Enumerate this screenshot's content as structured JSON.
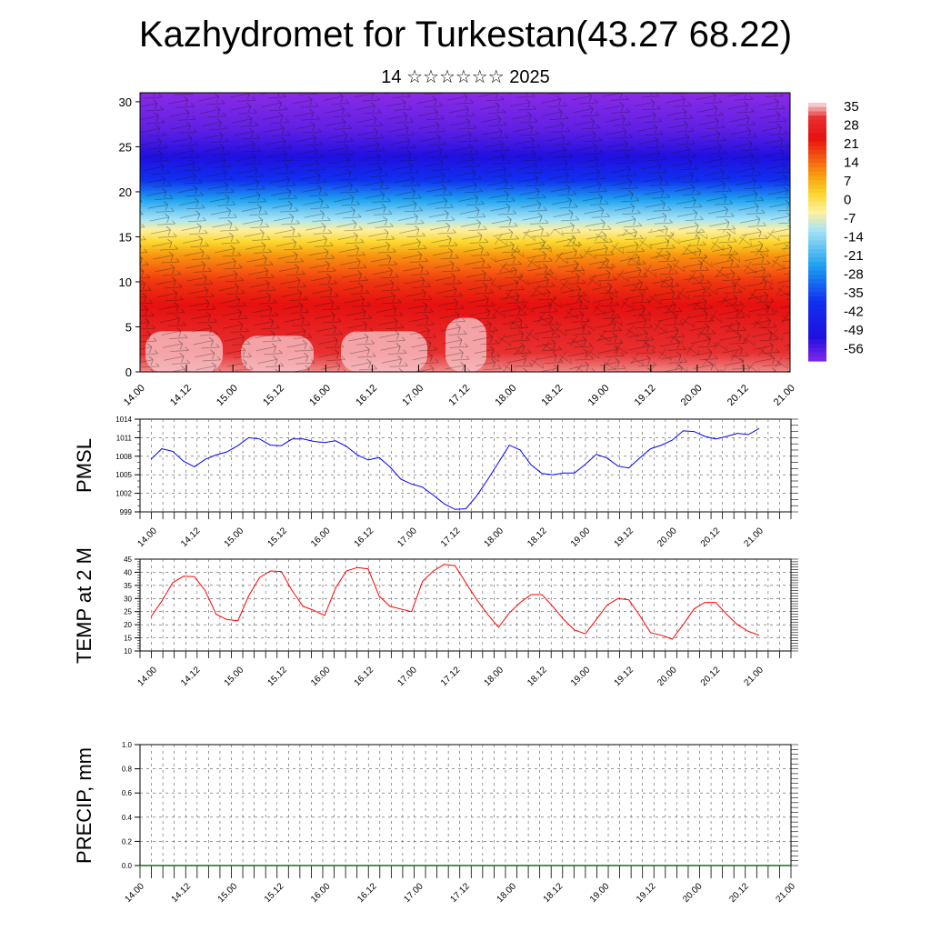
{
  "title": "Kazhydromet for Turkestan(43.27 68.22)",
  "subtitle": "14 ☆☆☆☆☆☆ 2025",
  "chart_data": [
    {
      "type": "heatmap",
      "description_levels": [
        0,
        5,
        10,
        15,
        20,
        25,
        30
      ],
      "x_ticks": [
        "14.00",
        "14.12",
        "15.00",
        "15.12",
        "16.00",
        "16.12",
        "17.00",
        "17.12",
        "18.00",
        "18.12",
        "19.00",
        "19.12",
        "20.00",
        "20.12",
        "21.00"
      ],
      "y_ticks": [
        0,
        5,
        10,
        15,
        20,
        25,
        30
      ],
      "ylim": [
        0,
        31
      ],
      "colorbar_labels": [
        "35",
        "28",
        "21",
        "14",
        "7",
        "0",
        "-7",
        "-14",
        "-21",
        "-28",
        "-35",
        "-42",
        "-49",
        "-56"
      ],
      "colorbar_colors": [
        "#f4c4c8",
        "#e81a1a",
        "#f05010",
        "#f89a10",
        "#fde85a",
        "#fdf7b0",
        "#a6e6f6",
        "#2ec2f0",
        "#1a58f0",
        "#1818e8",
        "#8a2ae6"
      ],
      "profile": [
        {
          "level": 0,
          "value": 33
        },
        {
          "level": 5,
          "value": 26
        },
        {
          "level": 10,
          "value": 18
        },
        {
          "level": 13,
          "value": 8
        },
        {
          "level": 16,
          "value": -8
        },
        {
          "level": 18,
          "value": -20
        },
        {
          "level": 21,
          "value": -40
        },
        {
          "level": 24,
          "value": -56
        },
        {
          "level": 27,
          "value": -62
        },
        {
          "level": 31,
          "value": -66
        }
      ]
    },
    {
      "type": "line",
      "ylabel": "PMSL",
      "ylim": [
        999,
        1014
      ],
      "y_ticks": [
        999,
        1002,
        1005,
        1008,
        1011,
        1014
      ],
      "x_ticks": [
        "14.00",
        "14.12",
        "15.00",
        "15.12",
        "16.00",
        "16.12",
        "17.00",
        "17.12",
        "18.00",
        "18.12",
        "19.00",
        "19.12",
        "20.00",
        "20.12",
        "21.00"
      ],
      "series": [
        {
          "color": "#0000ff",
          "values": [
            1007.5,
            1009.2,
            1008.8,
            1007.2,
            1006.3,
            1007.5,
            1008.2,
            1008.7,
            1009.7,
            1011.0,
            1010.8,
            1009.8,
            1009.7,
            1010.8,
            1010.8,
            1010.4,
            1010.2,
            1010.5,
            1009.6,
            1008.2,
            1007.4,
            1007.8,
            1006.3,
            1004.3,
            1003.5,
            1003.0,
            1001.7,
            1000.3,
            999.4,
            999.5,
            1001.6,
            1004.2,
            1007.0,
            1009.8,
            1009.0,
            1006.6,
            1005.2,
            1005.0,
            1005.3,
            1005.3,
            1006.7,
            1008.3,
            1007.7,
            1006.4,
            1006.1,
            1007.7,
            1009.2,
            1009.8,
            1010.6,
            1012.1,
            1012.0,
            1011.2,
            1010.8,
            1011.2,
            1011.7,
            1011.5,
            1012.5
          ]
        }
      ]
    },
    {
      "type": "line",
      "ylabel": "TEMP at 2 M",
      "ylim": [
        10,
        45
      ],
      "y_ticks": [
        10,
        15,
        20,
        25,
        30,
        35,
        40,
        45
      ],
      "x_ticks": [
        "14.00",
        "14.12",
        "15.00",
        "15.12",
        "16.00",
        "16.12",
        "17.00",
        "17.12",
        "18.00",
        "18.12",
        "19.00",
        "19.12",
        "20.00",
        "20.12",
        "21.00"
      ],
      "series": [
        {
          "color": "#ff0000",
          "values": [
            23,
            29,
            36,
            38.5,
            38.3,
            33,
            24,
            22,
            21.5,
            31,
            38,
            40.5,
            40.3,
            33,
            27,
            25.5,
            23.5,
            34,
            40.5,
            41.8,
            41.3,
            31,
            27,
            26,
            25,
            36.5,
            40.5,
            43,
            42.5,
            36,
            29.5,
            24,
            19,
            24.5,
            28.5,
            31.5,
            31.5,
            27,
            22,
            18,
            16.5,
            22,
            27.5,
            30,
            29.5,
            23.5,
            17,
            16,
            14.5,
            20,
            26,
            28.5,
            28.5,
            24,
            20,
            17.5,
            16
          ]
        }
      ]
    },
    {
      "type": "bar",
      "ylabel": "PRECIP, mm",
      "ylim": [
        0,
        1
      ],
      "y_ticks": [
        "0.0",
        "0.2",
        "0.4",
        "0.6",
        "0.8",
        "1.0"
      ],
      "x_ticks": [
        "14.00",
        "14.12",
        "15.00",
        "15.12",
        "16.00",
        "16.12",
        "17.00",
        "17.12",
        "18.00",
        "18.12",
        "19.00",
        "19.12",
        "20.00",
        "20.12",
        "21.00"
      ],
      "values": []
    }
  ]
}
